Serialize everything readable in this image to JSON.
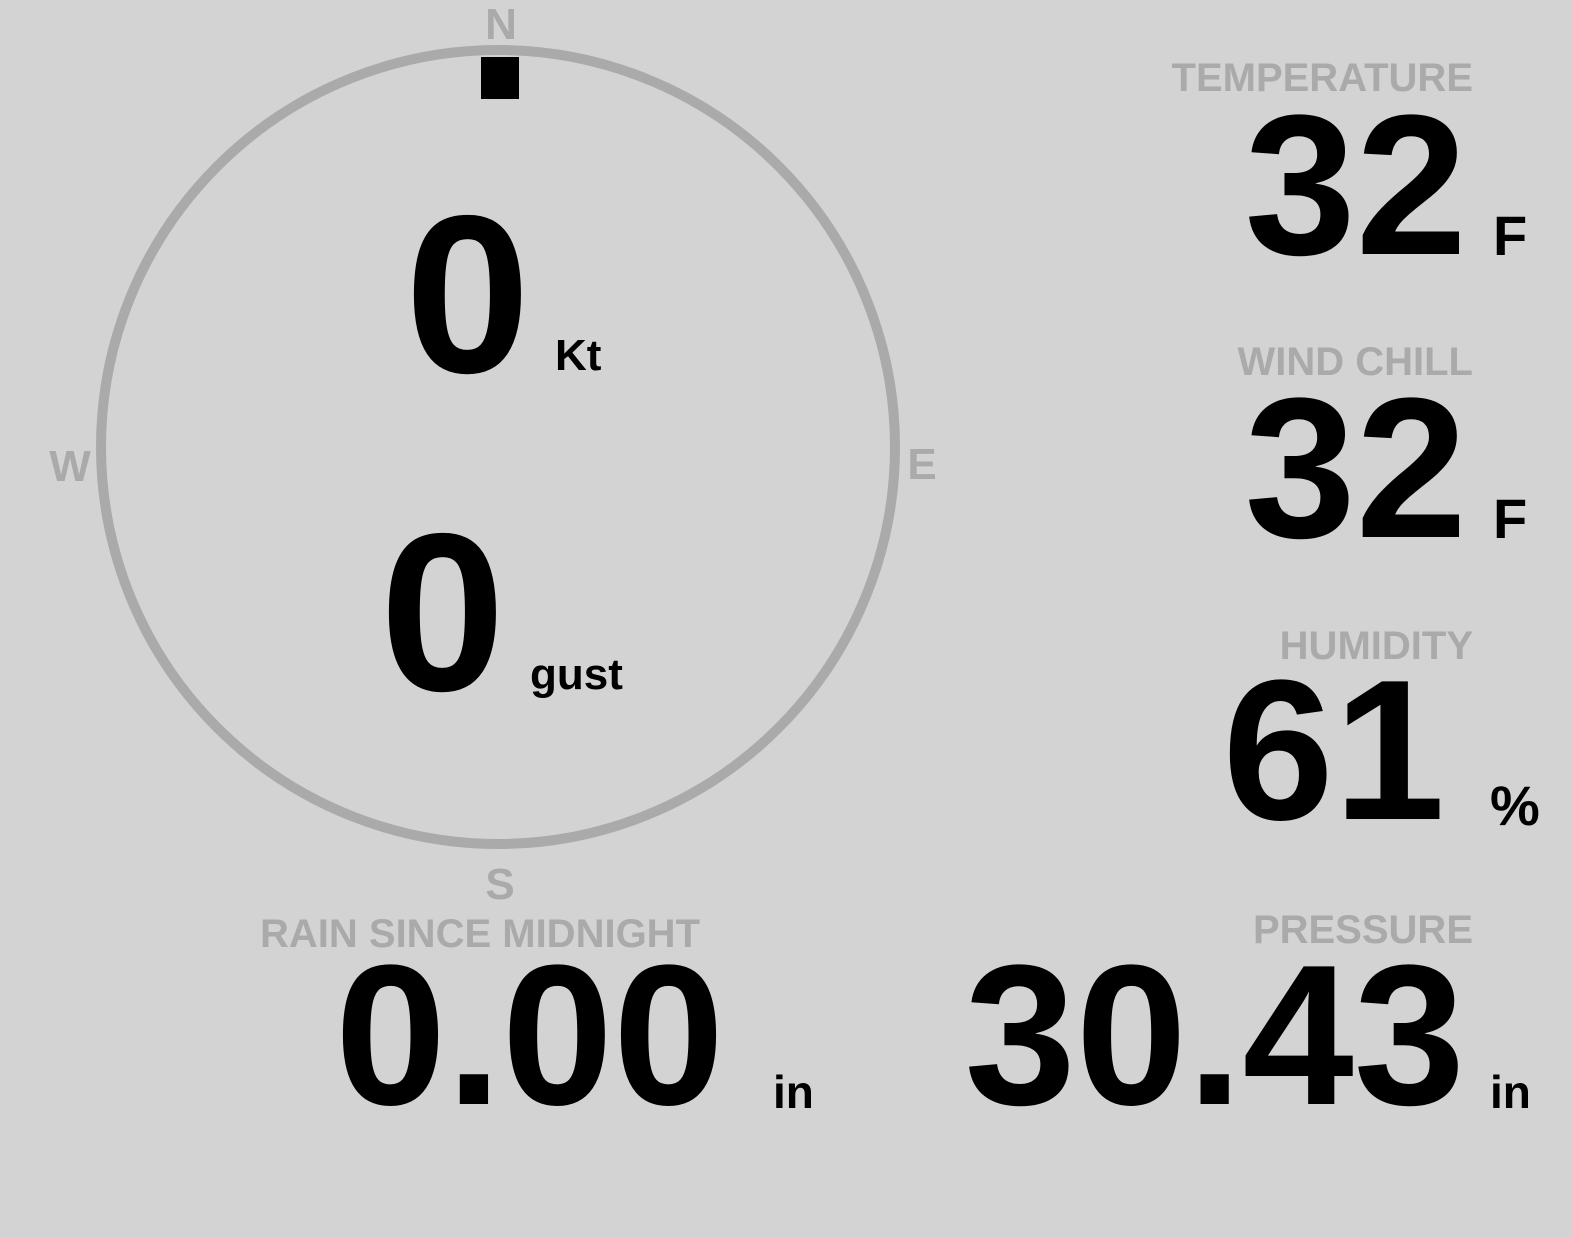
{
  "compass": {
    "north": "N",
    "south": "S",
    "east": "E",
    "west": "W",
    "wind_direction_deg": 0,
    "ring_color": "#aaaaaa"
  },
  "wind": {
    "speed": "0",
    "speed_unit": "Kt",
    "gust": "0",
    "gust_unit": "gust"
  },
  "temperature": {
    "label": "TEMPERATURE",
    "value": "32",
    "unit": "F"
  },
  "wind_chill": {
    "label": "WIND CHILL",
    "value": "32",
    "unit": "F"
  },
  "humidity": {
    "label": "HUMIDITY",
    "value": "61",
    "unit": "%"
  },
  "rain": {
    "label": "RAIN SINCE MIDNIGHT",
    "value": "0.00",
    "unit": "in"
  },
  "pressure": {
    "label": "PRESSURE",
    "value": "30.43",
    "unit": "in"
  },
  "colors": {
    "background": "#d3d3d3",
    "label": "#aaaaaa",
    "value": "#000000"
  }
}
